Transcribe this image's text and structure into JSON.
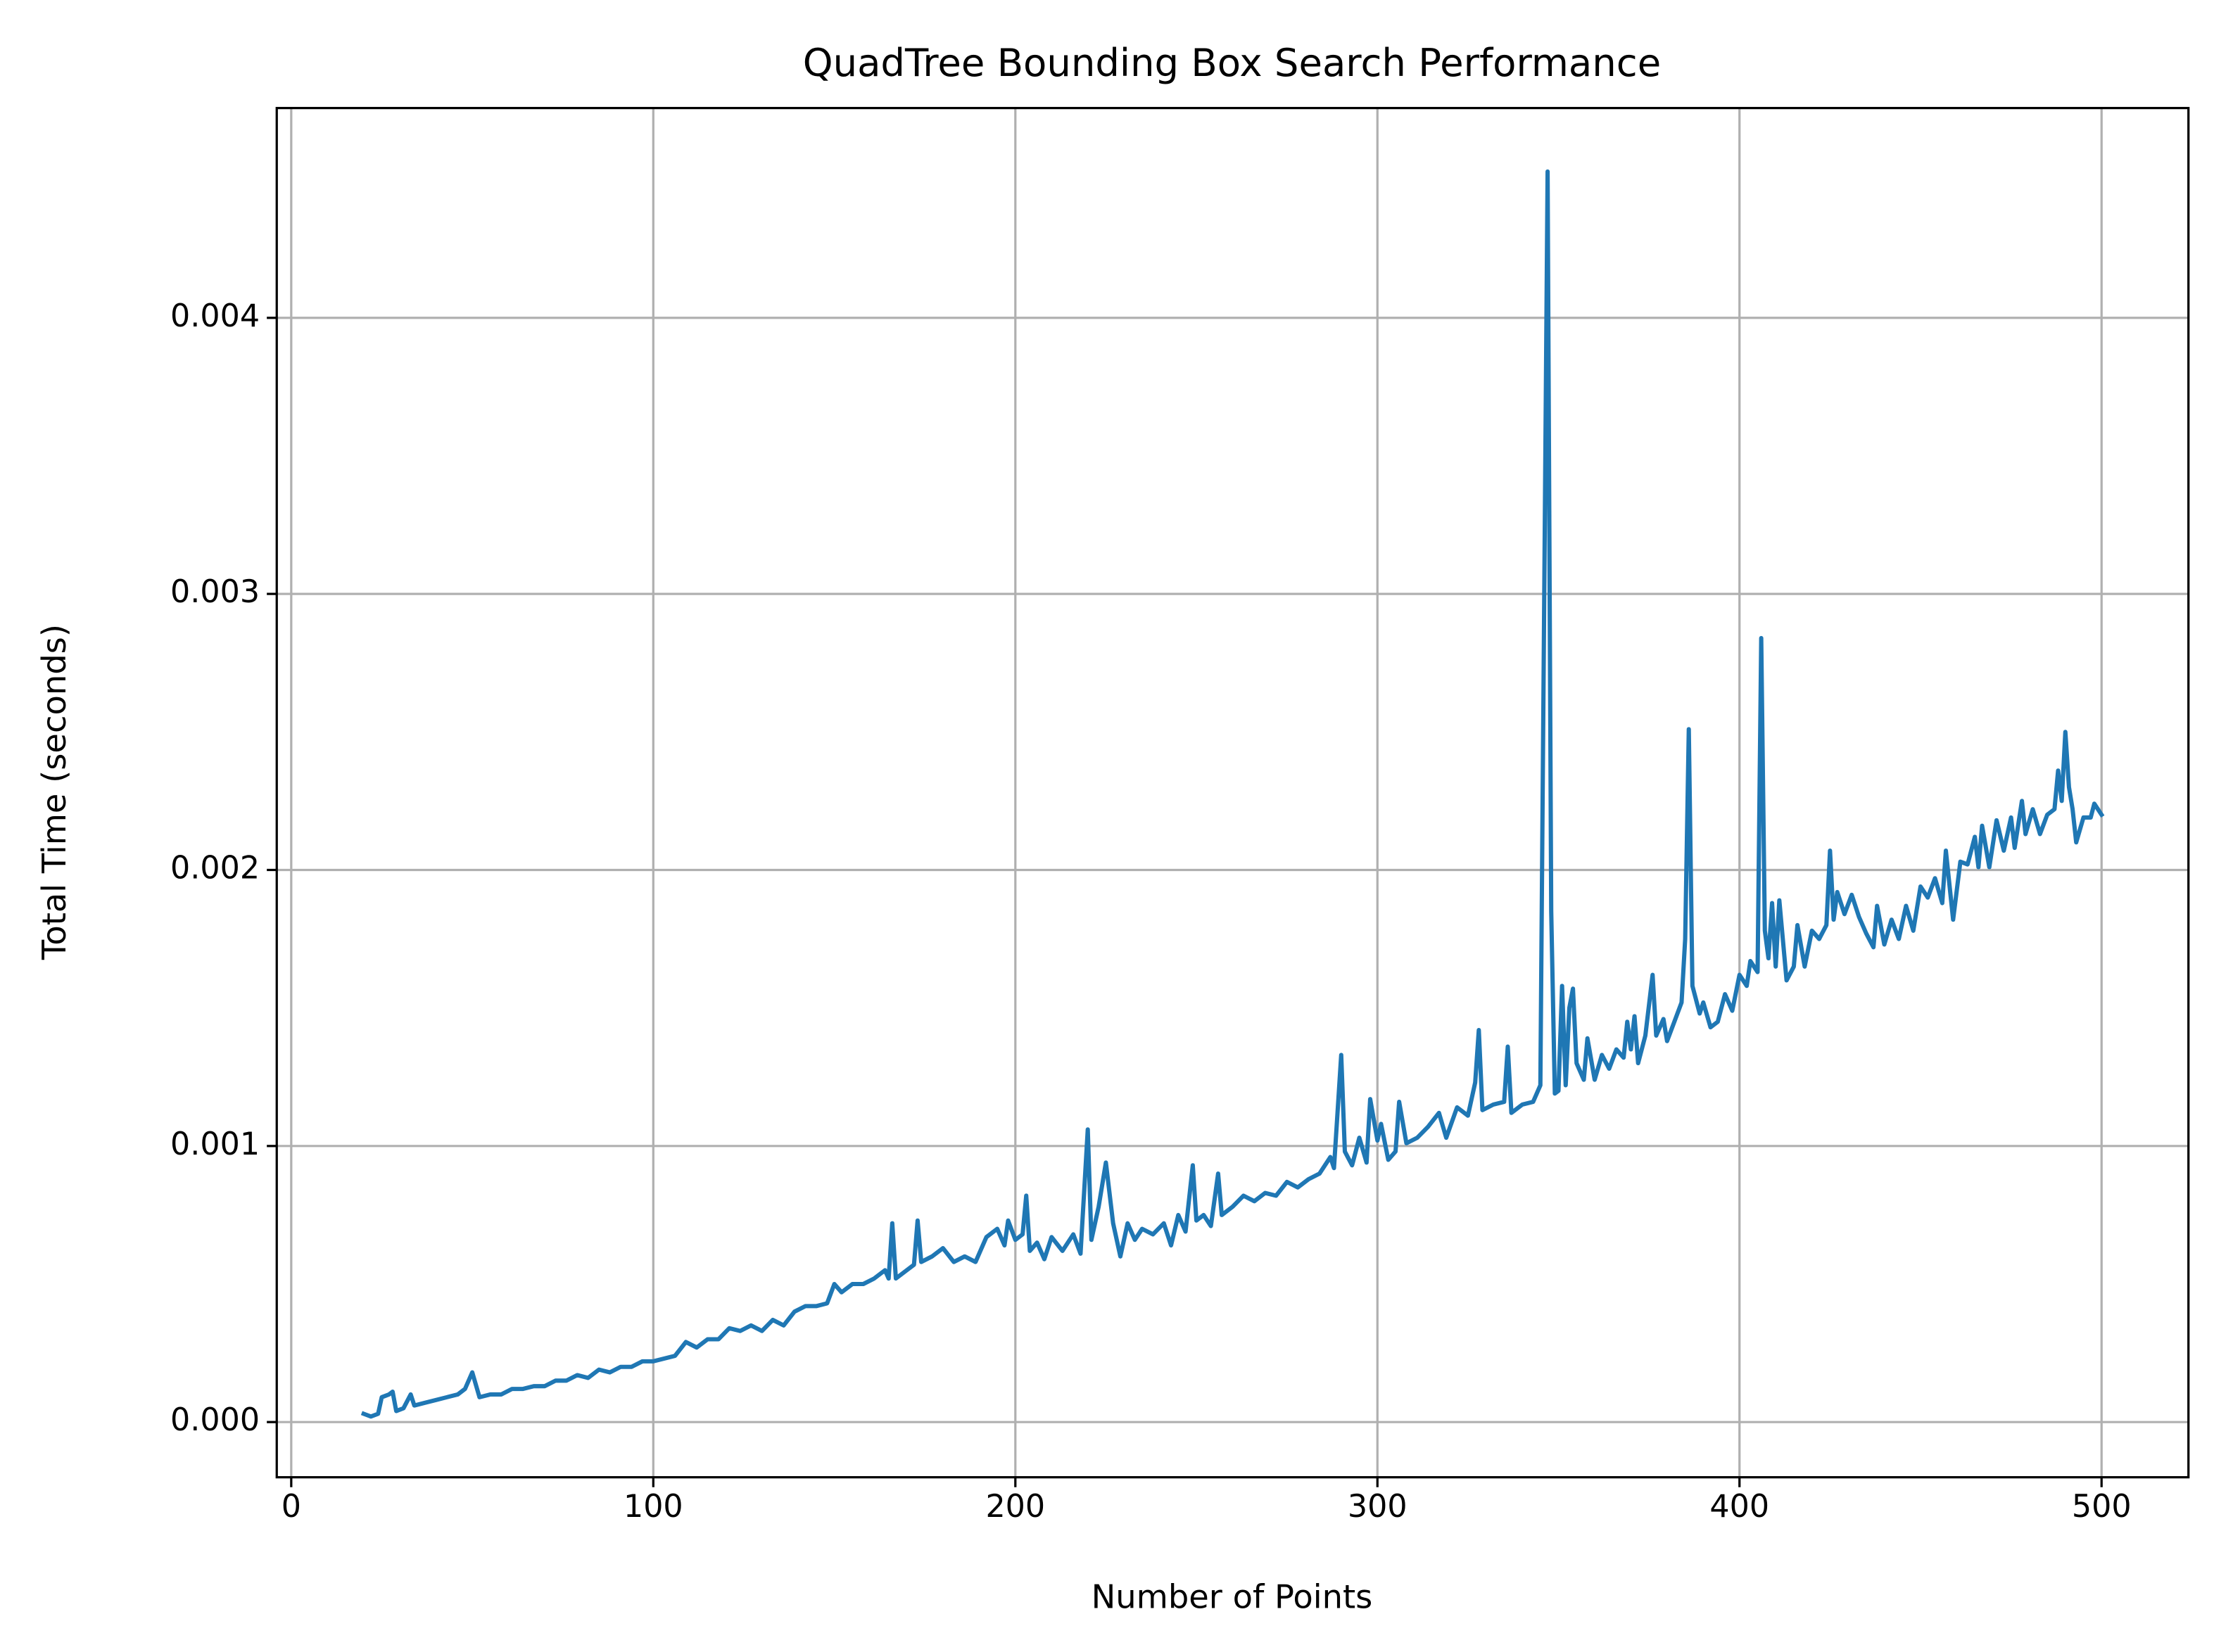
{
  "chart_data": {
    "type": "line",
    "title": "QuadTree Bounding Box Search Performance",
    "x_label": "Number of Points",
    "y_label": "Total Time (seconds)",
    "color": "#1f77b4",
    "grid": true,
    "xlim": [
      -4,
      524
    ],
    "xticks": [
      0,
      100,
      200,
      300,
      400,
      500
    ],
    "ylim": [
      -0.0002,
      0.00476
    ],
    "yticks": [
      {
        "value": 0,
        "label": "0.000"
      },
      {
        "value": 0.001,
        "label": "0.001"
      },
      {
        "value": 0.002,
        "label": "0.002"
      },
      {
        "value": 0.003,
        "label": "0.003"
      },
      {
        "value": 0.004,
        "label": "0.004"
      }
    ],
    "x": [
      20,
      22,
      24,
      25,
      27,
      28,
      29,
      31,
      33,
      34,
      37,
      40,
      43,
      46,
      48,
      50,
      52,
      55,
      58,
      61,
      64,
      67,
      70,
      73,
      76,
      79,
      82,
      85,
      88,
      91,
      94,
      97,
      100,
      103,
      106,
      109,
      112,
      115,
      118,
      121,
      124,
      127,
      130,
      133,
      136,
      139,
      142,
      145,
      148,
      150,
      152,
      155,
      158,
      161,
      164,
      165,
      166,
      167,
      170,
      172,
      173,
      174,
      177,
      180,
      183,
      186,
      189,
      192,
      195,
      197,
      198,
      200,
      202,
      203,
      204,
      206,
      208,
      210,
      213,
      216,
      218,
      220,
      221,
      223,
      225,
      227,
      229,
      231,
      233,
      235,
      238,
      241,
      243,
      245,
      247,
      249,
      250,
      252,
      254,
      256,
      257,
      260,
      263,
      266,
      269,
      272,
      275,
      278,
      281,
      284,
      287,
      288,
      290,
      291,
      293,
      295,
      297,
      298,
      300,
      301,
      303,
      305,
      306,
      308,
      311,
      314,
      317,
      319,
      322,
      325,
      327,
      328,
      329,
      332,
      335,
      336,
      337,
      340,
      343,
      345,
      347,
      348,
      349,
      350,
      351,
      352,
      353,
      354,
      355,
      357,
      358,
      360,
      362,
      364,
      366,
      368,
      369,
      370,
      371,
      372,
      374,
      376,
      377,
      379,
      380,
      382,
      384,
      385,
      386,
      387,
      389,
      390,
      392,
      394,
      396,
      398,
      400,
      402,
      403,
      405,
      406,
      407,
      408,
      409,
      410,
      411,
      413,
      415,
      416,
      418,
      420,
      422,
      424,
      425,
      426,
      427,
      429,
      431,
      433,
      435,
      437,
      438,
      440,
      442,
      444,
      446,
      448,
      450,
      452,
      454,
      456,
      457,
      459,
      461,
      463,
      465,
      466,
      467,
      469,
      471,
      473,
      475,
      476,
      478,
      479,
      481,
      483,
      485,
      487,
      488,
      489,
      490,
      491,
      492,
      493,
      495,
      497,
      498,
      500
    ],
    "values": [
      3e-05,
      2e-05,
      3e-05,
      9e-05,
      0.0001,
      0.00011,
      4e-05,
      5e-05,
      0.0001,
      6e-05,
      7e-05,
      8e-05,
      9e-05,
      0.0001,
      0.00012,
      0.00018,
      9e-05,
      0.0001,
      0.0001,
      0.00012,
      0.00012,
      0.00013,
      0.00013,
      0.00015,
      0.00015,
      0.00017,
      0.00016,
      0.00019,
      0.00018,
      0.0002,
      0.0002,
      0.00022,
      0.00022,
      0.00023,
      0.00024,
      0.00029,
      0.00027,
      0.0003,
      0.0003,
      0.00034,
      0.00033,
      0.00035,
      0.00033,
      0.00037,
      0.00035,
      0.0004,
      0.00042,
      0.00042,
      0.00043,
      0.0005,
      0.00047,
      0.0005,
      0.0005,
      0.00052,
      0.00055,
      0.00052,
      0.00072,
      0.00052,
      0.00055,
      0.00057,
      0.00073,
      0.00058,
      0.0006,
      0.00063,
      0.00058,
      0.0006,
      0.00058,
      0.00067,
      0.0007,
      0.00064,
      0.00073,
      0.00066,
      0.00068,
      0.00082,
      0.00062,
      0.00065,
      0.00059,
      0.00067,
      0.00062,
      0.00068,
      0.00061,
      0.00106,
      0.00066,
      0.00078,
      0.00094,
      0.00072,
      0.0006,
      0.00072,
      0.00066,
      0.0007,
      0.00068,
      0.00072,
      0.00064,
      0.00075,
      0.00069,
      0.00093,
      0.00073,
      0.00075,
      0.00071,
      0.0009,
      0.00075,
      0.00078,
      0.00082,
      0.0008,
      0.00083,
      0.00082,
      0.00087,
      0.00085,
      0.00088,
      0.0009,
      0.00096,
      0.00092,
      0.00133,
      0.00098,
      0.00093,
      0.00103,
      0.00094,
      0.00117,
      0.00102,
      0.00108,
      0.00095,
      0.00098,
      0.00116,
      0.00101,
      0.00103,
      0.00107,
      0.00112,
      0.00103,
      0.00114,
      0.00111,
      0.00123,
      0.00142,
      0.00113,
      0.00115,
      0.00116,
      0.00136,
      0.00112,
      0.00115,
      0.00116,
      0.00122,
      0.00453,
      0.00185,
      0.00119,
      0.0012,
      0.00158,
      0.00122,
      0.0015,
      0.00157,
      0.0013,
      0.00124,
      0.00139,
      0.00124,
      0.00133,
      0.00128,
      0.00135,
      0.00132,
      0.00145,
      0.00135,
      0.00147,
      0.0013,
      0.0014,
      0.00162,
      0.0014,
      0.00146,
      0.00138,
      0.00145,
      0.00152,
      0.00175,
      0.00251,
      0.00158,
      0.00148,
      0.00152,
      0.00143,
      0.00145,
      0.00155,
      0.00149,
      0.00162,
      0.00158,
      0.00167,
      0.00163,
      0.00284,
      0.00178,
      0.00168,
      0.00188,
      0.00165,
      0.00189,
      0.0016,
      0.00165,
      0.0018,
      0.00165,
      0.00178,
      0.00175,
      0.0018,
      0.00207,
      0.00182,
      0.00192,
      0.00184,
      0.00191,
      0.00183,
      0.00177,
      0.00172,
      0.00187,
      0.00173,
      0.00182,
      0.00175,
      0.00187,
      0.00178,
      0.00194,
      0.0019,
      0.00197,
      0.00188,
      0.00207,
      0.00182,
      0.00203,
      0.00202,
      0.00212,
      0.00201,
      0.00216,
      0.00201,
      0.00218,
      0.00207,
      0.00219,
      0.00208,
      0.00225,
      0.00213,
      0.00222,
      0.00213,
      0.0022,
      0.00222,
      0.00236,
      0.00225,
      0.0025,
      0.0023,
      0.00222,
      0.0021,
      0.00219,
      0.00219,
      0.00224,
      0.0022
    ]
  }
}
